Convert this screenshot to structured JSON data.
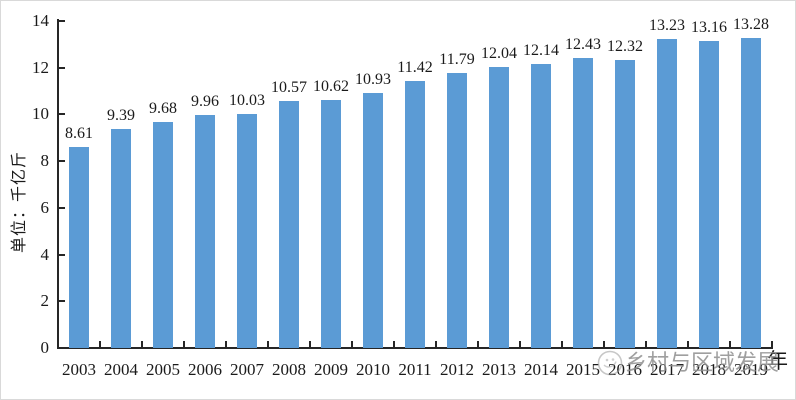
{
  "chart_data": {
    "type": "bar",
    "title": "",
    "categories": [
      "2003",
      "2004",
      "2005",
      "2006",
      "2007",
      "2008",
      "2009",
      "2010",
      "2011",
      "2012",
      "2013",
      "2014",
      "2015",
      "2016",
      "2017",
      "2018",
      "2019"
    ],
    "values": [
      8.61,
      9.39,
      9.68,
      9.96,
      10.03,
      10.57,
      10.62,
      10.93,
      11.42,
      11.79,
      12.04,
      12.14,
      12.43,
      12.32,
      13.23,
      13.16,
      13.28
    ],
    "data_labels": [
      "8.61",
      "9.39",
      "9.68",
      "9.96",
      "10.03",
      "10.57",
      "10.62",
      "10.93",
      "11.42",
      "11.79",
      "12.04",
      "12.14",
      "12.43",
      "12.32",
      "13.23",
      "13.16",
      "13.28"
    ],
    "ylabel": "单位：千亿斤",
    "xlabel": "年",
    "ylim": [
      0,
      14
    ],
    "yticks": [
      0,
      2,
      4,
      6,
      8,
      10,
      12,
      14
    ],
    "bar_color": "#5B9BD5",
    "axis_color": "#262626",
    "grid": false,
    "legend": null,
    "data_labels_shown": true
  },
  "watermark": {
    "text": "乡村与区域发展",
    "logo": "circular-account-logo",
    "color": "#8f8f8f"
  }
}
